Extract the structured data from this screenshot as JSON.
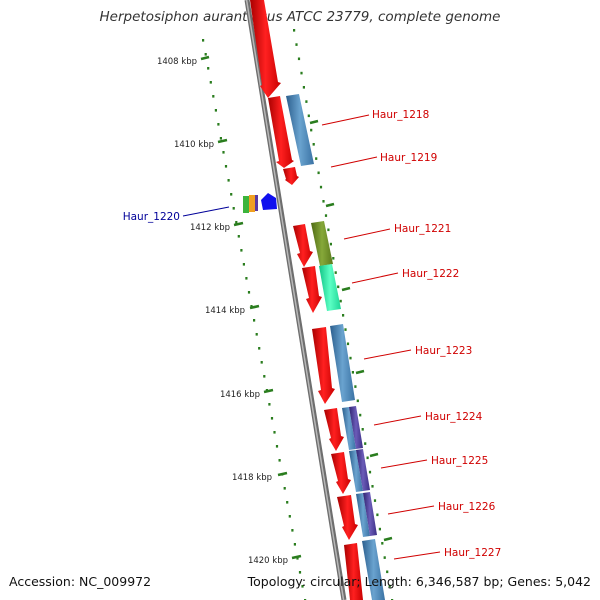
{
  "title": "Herpetosiphon aurantiacus ATCC 23779, complete genome",
  "footer": {
    "accession": "Accession: NC_009972",
    "summary": "Topology: circular; Length: 6,346,587 bp; Genes: 5,042"
  },
  "ruler": {
    "color": "#2a7d1e",
    "labels": [
      "1408 kbp",
      "1410 kbp",
      "1412 kbp",
      "1414 kbp",
      "1416 kbp",
      "1418 kbp",
      "1420 kbp"
    ]
  },
  "backbone": {
    "color": "#8a8a8a"
  },
  "genes": [
    {
      "name": "Haur_1218",
      "color": "#d00000"
    },
    {
      "name": "Haur_1219",
      "color": "#d00000"
    },
    {
      "name": "Haur_1220",
      "color": "#000099"
    },
    {
      "name": "Haur_1221",
      "color": "#d00000"
    },
    {
      "name": "Haur_1222",
      "color": "#d00000"
    },
    {
      "name": "Haur_1223",
      "color": "#d00000"
    },
    {
      "name": "Haur_1224",
      "color": "#d00000"
    },
    {
      "name": "Haur_1225",
      "color": "#d00000"
    },
    {
      "name": "Haur_1226",
      "color": "#d00000"
    },
    {
      "name": "Haur_1227",
      "color": "#d00000"
    }
  ],
  "feature_colors": {
    "cds_red": "#ee1c1c",
    "cds_blue": "#4a86b8",
    "olive": "#6b8e23",
    "mint": "#2be8a8",
    "purple": "#4b3d91",
    "green_small": "#3cb43c",
    "orange_small": "#f0a020",
    "blue_small": "#1010ee"
  }
}
